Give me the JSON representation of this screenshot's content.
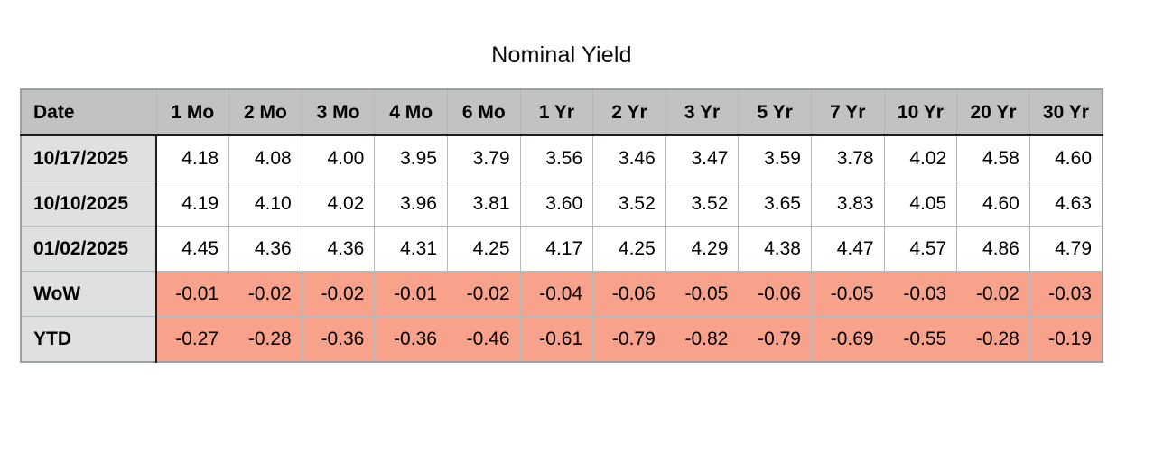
{
  "title": "Nominal Yield",
  "colors": {
    "header_bg": "#c2c2c2",
    "date_column_bg": "#e0e0e0",
    "negative_row_bg": "#f8a28b",
    "grid_line": "#b3babd",
    "dark_divider": "#1c1c1c",
    "text": "#000000",
    "page_bg": "#ffffff"
  },
  "chart_data": {
    "type": "table",
    "title": "Nominal Yield",
    "columns": [
      "Date",
      "1 Mo",
      "2 Mo",
      "3 Mo",
      "4 Mo",
      "6 Mo",
      "1 Yr",
      "2 Yr",
      "3 Yr",
      "5 Yr",
      "7 Yr",
      "10 Yr",
      "20 Yr",
      "30 Yr"
    ],
    "rows": [
      {
        "label": "10/17/2025",
        "highlight": false,
        "values": [
          "4.18",
          "4.08",
          "4.00",
          "3.95",
          "3.79",
          "3.56",
          "3.46",
          "3.47",
          "3.59",
          "3.78",
          "4.02",
          "4.58",
          "4.60"
        ]
      },
      {
        "label": "10/10/2025",
        "highlight": false,
        "values": [
          "4.19",
          "4.10",
          "4.02",
          "3.96",
          "3.81",
          "3.60",
          "3.52",
          "3.52",
          "3.65",
          "3.83",
          "4.05",
          "4.60",
          "4.63"
        ]
      },
      {
        "label": "01/02/2025",
        "highlight": false,
        "values": [
          "4.45",
          "4.36",
          "4.36",
          "4.31",
          "4.25",
          "4.17",
          "4.25",
          "4.29",
          "4.38",
          "4.47",
          "4.57",
          "4.86",
          "4.79"
        ]
      },
      {
        "label": "WoW",
        "highlight": true,
        "values": [
          "-0.01",
          "-0.02",
          "-0.02",
          "-0.01",
          "-0.02",
          "-0.04",
          "-0.06",
          "-0.05",
          "-0.06",
          "-0.05",
          "-0.03",
          "-0.02",
          "-0.03"
        ]
      },
      {
        "label": "YTD",
        "highlight": true,
        "values": [
          "-0.27",
          "-0.28",
          "-0.36",
          "-0.36",
          "-0.46",
          "-0.61",
          "-0.79",
          "-0.82",
          "-0.79",
          "-0.69",
          "-0.55",
          "-0.28",
          "-0.19"
        ]
      }
    ]
  }
}
